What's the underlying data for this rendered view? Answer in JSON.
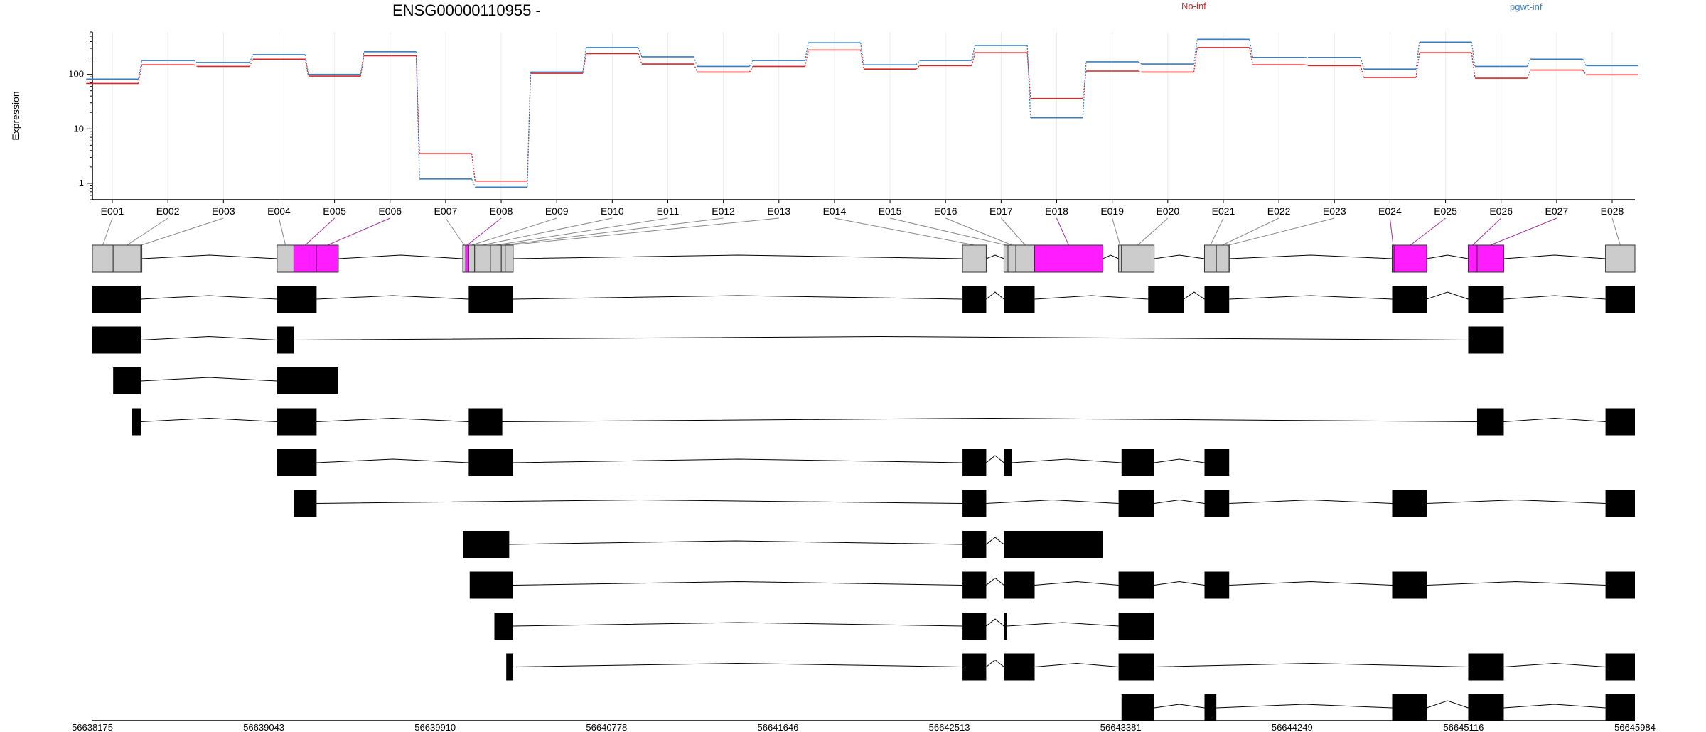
{
  "chart_data": {
    "type": "line",
    "title": "ENSG00000110955 -",
    "ylabel": "Expression",
    "yscale": "log",
    "ylim": [
      0.5,
      600
    ],
    "ytick_labels": [
      "1",
      "10",
      "100"
    ],
    "ytick_values": [
      1,
      10,
      100
    ],
    "colors": {
      "No-inf": "#d62728",
      "pgwt-inf": "#3a7ebf",
      "highlight": "#ff1cff",
      "exon_grey": "#cccccc"
    },
    "categories": [
      "E001",
      "E002",
      "E003",
      "E004",
      "E005",
      "E006",
      "E007",
      "E008",
      "E009",
      "E010",
      "E011",
      "E012",
      "E013",
      "E014",
      "E015",
      "E016",
      "E017",
      "E018",
      "E019",
      "E020",
      "E021",
      "E022",
      "E023",
      "E024",
      "E025",
      "E026",
      "E027",
      "E028"
    ],
    "series": [
      {
        "name": "No-inf",
        "values": [
          68,
          150,
          140,
          190,
          93,
          220,
          3.5,
          1.1,
          105,
          240,
          155,
          110,
          140,
          280,
          125,
          145,
          250,
          36,
          115,
          110,
          310,
          150,
          145,
          88,
          250,
          85,
          120,
          98
        ]
      },
      {
        "name": "pgwt-inf",
        "values": [
          82,
          180,
          165,
          230,
          100,
          260,
          1.2,
          0.85,
          110,
          310,
          210,
          140,
          180,
          380,
          150,
          180,
          340,
          16,
          170,
          155,
          440,
          205,
          205,
          125,
          390,
          140,
          190,
          145
        ]
      }
    ],
    "genomic_coordinates": {
      "start": 56638175,
      "end": 56645984,
      "tick_labels": [
        "56638175",
        "56639043",
        "56639910",
        "56640778",
        "56641646",
        "56642513",
        "56643381",
        "56644249",
        "56645116",
        "56645984"
      ]
    },
    "exon_bins": [
      {
        "id": "E001",
        "start": 56638175,
        "end": 56638280,
        "highlight": false
      },
      {
        "id": "E002",
        "start": 56638280,
        "end": 56638420,
        "highlight": false
      },
      {
        "id": "E003",
        "start": 56638420,
        "end": 56638425,
        "highlight": false
      },
      {
        "id": "E004",
        "start": 56639110,
        "end": 56639195,
        "highlight": false
      },
      {
        "id": "E005",
        "start": 56639195,
        "end": 56639310,
        "highlight": true
      },
      {
        "id": "E006",
        "start": 56639310,
        "end": 56639420,
        "highlight": true
      },
      {
        "id": "E007",
        "start": 56640050,
        "end": 56640065,
        "highlight": false
      },
      {
        "id": "E008",
        "start": 56640065,
        "end": 56640080,
        "highlight": true
      },
      {
        "id": "E009",
        "start": 56640080,
        "end": 56640110,
        "highlight": false
      },
      {
        "id": "E010",
        "start": 56640110,
        "end": 56640190,
        "highlight": false
      },
      {
        "id": "E011",
        "start": 56640190,
        "end": 56640245,
        "highlight": false
      },
      {
        "id": "E012",
        "start": 56640245,
        "end": 56640265,
        "highlight": false
      },
      {
        "id": "E013",
        "start": 56640265,
        "end": 56640305,
        "highlight": false
      },
      {
        "id": "E014",
        "start": 56642580,
        "end": 56642700,
        "highlight": false
      },
      {
        "id": "E015",
        "start": 56642790,
        "end": 56642810,
        "highlight": false
      },
      {
        "id": "E016",
        "start": 56642810,
        "end": 56642850,
        "highlight": false
      },
      {
        "id": "E017",
        "start": 56642850,
        "end": 56642945,
        "highlight": false
      },
      {
        "id": "E018",
        "start": 56642945,
        "end": 56643290,
        "highlight": true
      },
      {
        "id": "E019",
        "start": 56643370,
        "end": 56643385,
        "highlight": false
      },
      {
        "id": "E020",
        "start": 56643385,
        "end": 56643550,
        "highlight": false
      },
      {
        "id": "E021",
        "start": 56643805,
        "end": 56643865,
        "highlight": false
      },
      {
        "id": "E022",
        "start": 56643865,
        "end": 56643925,
        "highlight": false
      },
      {
        "id": "E023",
        "start": 56643925,
        "end": 56643930,
        "highlight": false
      },
      {
        "id": "E024",
        "start": 56644755,
        "end": 56644765,
        "highlight": true
      },
      {
        "id": "E025",
        "start": 56644765,
        "end": 56644930,
        "highlight": true
      },
      {
        "id": "E026",
        "start": 56645140,
        "end": 56645185,
        "highlight": true
      },
      {
        "id": "E027",
        "start": 56645185,
        "end": 56645320,
        "highlight": true
      },
      {
        "id": "E028",
        "start": 56645835,
        "end": 56645984,
        "highlight": false
      }
    ],
    "transcripts": [
      [
        [
          56638175,
          56638420
        ],
        [
          56639110,
          56639310
        ],
        [
          56640080,
          56640305
        ],
        [
          56642580,
          56642700
        ],
        [
          56642790,
          56642945
        ],
        [
          56643520,
          56643700
        ],
        [
          56643805,
          56643930
        ],
        [
          56644755,
          56644930
        ],
        [
          56645140,
          56645320
        ],
        [
          56645835,
          56645984
        ]
      ],
      [
        [
          56638175,
          56638420
        ],
        [
          56639110,
          56639195
        ],
        [
          56645140,
          56645320
        ]
      ],
      [
        [
          56638280,
          56638420
        ],
        [
          56639110,
          56639420
        ]
      ],
      [
        [
          56638375,
          56638420
        ],
        [
          56639110,
          56639310
        ],
        [
          56640080,
          56640250
        ],
        [
          56645185,
          56645320
        ],
        [
          56645835,
          56645984
        ]
      ],
      [
        [
          56639110,
          56639310
        ],
        [
          56640080,
          56640305
        ],
        [
          56642580,
          56642700
        ],
        [
          56642790,
          56642830
        ],
        [
          56643385,
          56643550
        ],
        [
          56643805,
          56643930
        ]
      ],
      [
        [
          56639195,
          56639310
        ],
        [
          56642580,
          56642700
        ],
        [
          56643370,
          56643550
        ],
        [
          56643805,
          56643930
        ],
        [
          56644755,
          56644930
        ],
        [
          56645835,
          56645984
        ]
      ],
      [
        [
          56640050,
          56640285
        ],
        [
          56642580,
          56642700
        ],
        [
          56642790,
          56643290
        ]
      ],
      [
        [
          56640085,
          56640305
        ],
        [
          56642580,
          56642700
        ],
        [
          56642790,
          56642945
        ],
        [
          56643370,
          56643550
        ],
        [
          56643805,
          56643930
        ],
        [
          56644755,
          56644930
        ],
        [
          56645835,
          56645984
        ]
      ],
      [
        [
          56640210,
          56640305
        ],
        [
          56642580,
          56642700
        ],
        [
          56642790,
          56642805
        ],
        [
          56643370,
          56643550
        ]
      ],
      [
        [
          56640270,
          56640305
        ],
        [
          56642580,
          56642700
        ],
        [
          56642790,
          56642945
        ],
        [
          56643370,
          56643550
        ],
        [
          56645140,
          56645320
        ],
        [
          56645835,
          56645984
        ]
      ],
      [
        [
          56643385,
          56643550
        ],
        [
          56643805,
          56643865
        ],
        [
          56644755,
          56644930
        ],
        [
          56645140,
          56645320
        ],
        [
          56645835,
          56645984
        ]
      ]
    ]
  }
}
